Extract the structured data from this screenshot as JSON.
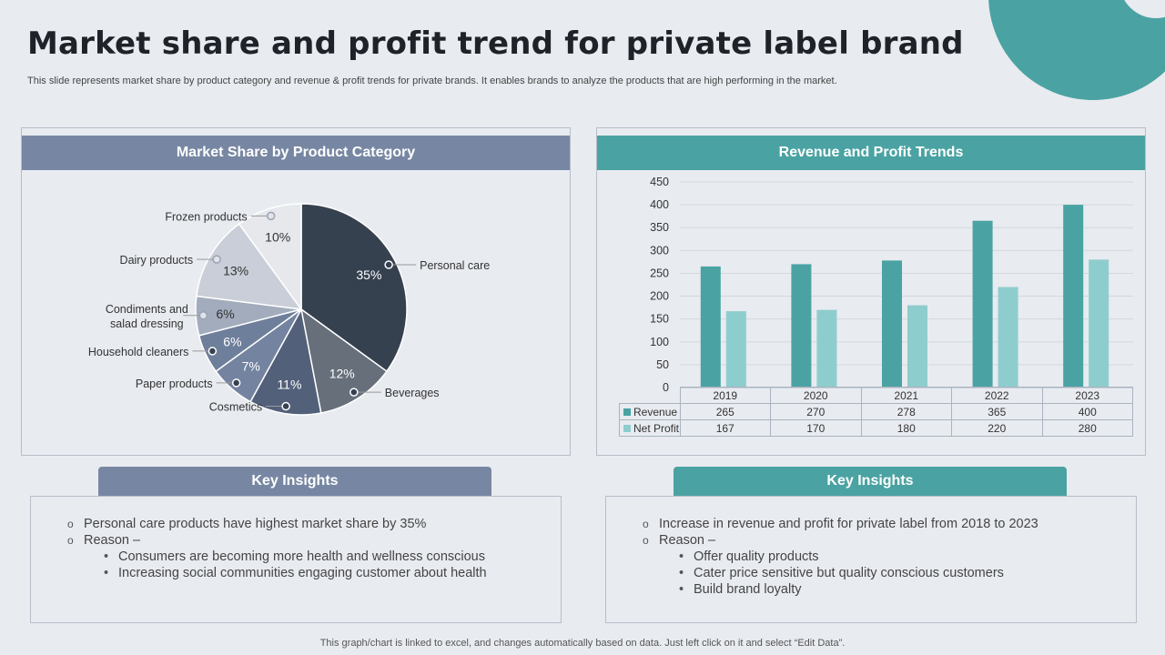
{
  "header": {
    "title": "Market share and profit trend for private label brand",
    "subtitle": "This slide represents market share by product category and revenue & profit trends for private brands. It enables brands to analyze the products that are high performing in the market."
  },
  "colors": {
    "teal": "#4aa3a2",
    "light_teal": "#8ecdcd",
    "slate": "#7787a3"
  },
  "chart_data": [
    {
      "type": "pie",
      "title": "Market Share by Product Category",
      "categories": [
        "Personal care",
        "Beverages",
        "Cosmetics",
        "Paper products",
        "Household cleaners",
        "Condiments and salad dressing",
        "Dairy products",
        "Frozen products"
      ],
      "label_lines": [
        [
          "Personal care"
        ],
        [
          "Beverages"
        ],
        [
          "Cosmetics"
        ],
        [
          "Paper products"
        ],
        [
          "Household cleaners"
        ],
        [
          "Condiments and",
          "salad dressing"
        ],
        [
          "Dairy products"
        ],
        [
          "Frozen products"
        ]
      ],
      "values": [
        35,
        12,
        11,
        7,
        6,
        6,
        13,
        10
      ],
      "value_labels": [
        "35%",
        "12%",
        "11%",
        "7%",
        "6%",
        "6%",
        "13%",
        "10%"
      ],
      "colors": [
        "#364150",
        "#676f7b",
        "#52607a",
        "#7383a0",
        "#6e7f9b",
        "#a2acbd",
        "#c9ced8",
        "#e6e8ec"
      ]
    },
    {
      "type": "bar",
      "title": "Revenue and Profit Trends",
      "categories": [
        "2019",
        "2020",
        "2021",
        "2022",
        "2023"
      ],
      "series": [
        {
          "name": "Revenue",
          "values": [
            265,
            270,
            278,
            365,
            400
          ],
          "display": [
            "265",
            "270",
            "278",
            "365",
            "400"
          ],
          "color": "#4aa3a2"
        },
        {
          "name": "Net Profit",
          "values": [
            167,
            170,
            180,
            220,
            280
          ],
          "display": [
            "167",
            "170",
            "180",
            "220",
            "280"
          ],
          "color": "#8ecdcd"
        }
      ],
      "ylim": [
        0,
        450
      ],
      "yticks": [
        "0",
        "50",
        "100",
        "150",
        "200",
        "250",
        "300",
        "350",
        "400",
        "450"
      ],
      "legend": "data-table"
    }
  ],
  "insights_left": {
    "title": "Key Insights",
    "point1": "Personal care products have highest market share by 35%",
    "reason": "Reason –",
    "sub1": "Consumers are becoming more health and wellness conscious",
    "sub2": "Increasing social communities engaging customer about health"
  },
  "insights_right": {
    "title": "Key Insights",
    "point1": "Increase in revenue and profit for private label from 2018 to 2023",
    "reason": "Reason –",
    "sub1": "Offer quality products",
    "sub2": "Cater price sensitive but quality conscious customers",
    "sub3": "Build brand loyalty"
  },
  "footer": "This graph/chart is linked to excel, and changes automatically based on data. Just left click on it and select “Edit Data”."
}
